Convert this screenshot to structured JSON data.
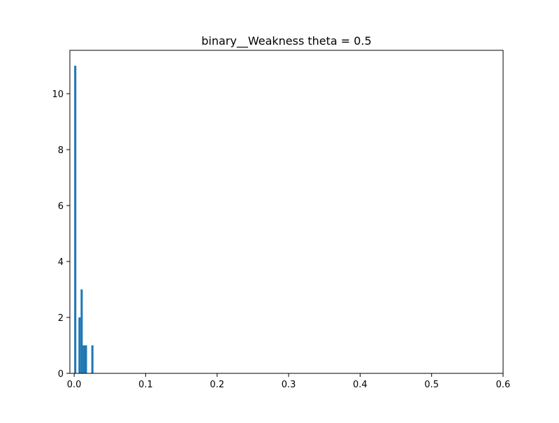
{
  "chart_data": {
    "type": "bar",
    "title": "binary__Weakness theta = 0.5",
    "xlabel": "",
    "ylabel": "",
    "xlim": [
      -0.006,
      0.6
    ],
    "ylim": [
      0,
      11.55
    ],
    "xticks": [
      0.0,
      0.1,
      0.2,
      0.3,
      0.4,
      0.5,
      0.6
    ],
    "xtick_labels": [
      "0.0",
      "0.1",
      "0.2",
      "0.3",
      "0.4",
      "0.5",
      "0.6"
    ],
    "yticks": [
      0,
      2,
      4,
      6,
      8,
      10
    ],
    "ytick_labels": [
      "0",
      "2",
      "4",
      "6",
      "8",
      "10"
    ],
    "bin_width": 0.003,
    "bins": [
      {
        "x_start": 0.0,
        "value": 11
      },
      {
        "x_start": 0.006,
        "value": 2
      },
      {
        "x_start": 0.009,
        "value": 3
      },
      {
        "x_start": 0.012,
        "value": 1
      },
      {
        "x_start": 0.015,
        "value": 1
      },
      {
        "x_start": 0.024,
        "value": 1
      }
    ],
    "bar_color": "#1f77b4",
    "grid": false,
    "legend": "none"
  }
}
